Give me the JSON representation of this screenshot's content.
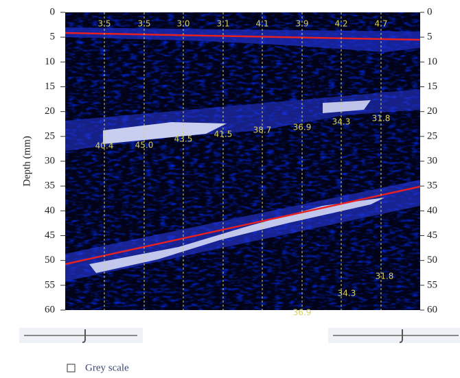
{
  "axis": {
    "label": "Depth (mm)",
    "ylim": [
      0,
      60
    ],
    "yticks": [
      0,
      5,
      10,
      15,
      20,
      25,
      30,
      35,
      40,
      45,
      50,
      55,
      60
    ]
  },
  "top_labels": [
    "3.5",
    "3.5",
    "3.0",
    "3.1",
    "4.1",
    "3.9",
    "4.2",
    "4.7"
  ],
  "middle_labels": [
    "40.4",
    "45.0",
    "43.5",
    "41.5",
    "38.7",
    "36.9",
    "34.3",
    "31.8"
  ],
  "bottom_labels": [
    "36.9",
    "34.3",
    "31.8"
  ],
  "checkbox": {
    "label": "Grey scale"
  }
}
